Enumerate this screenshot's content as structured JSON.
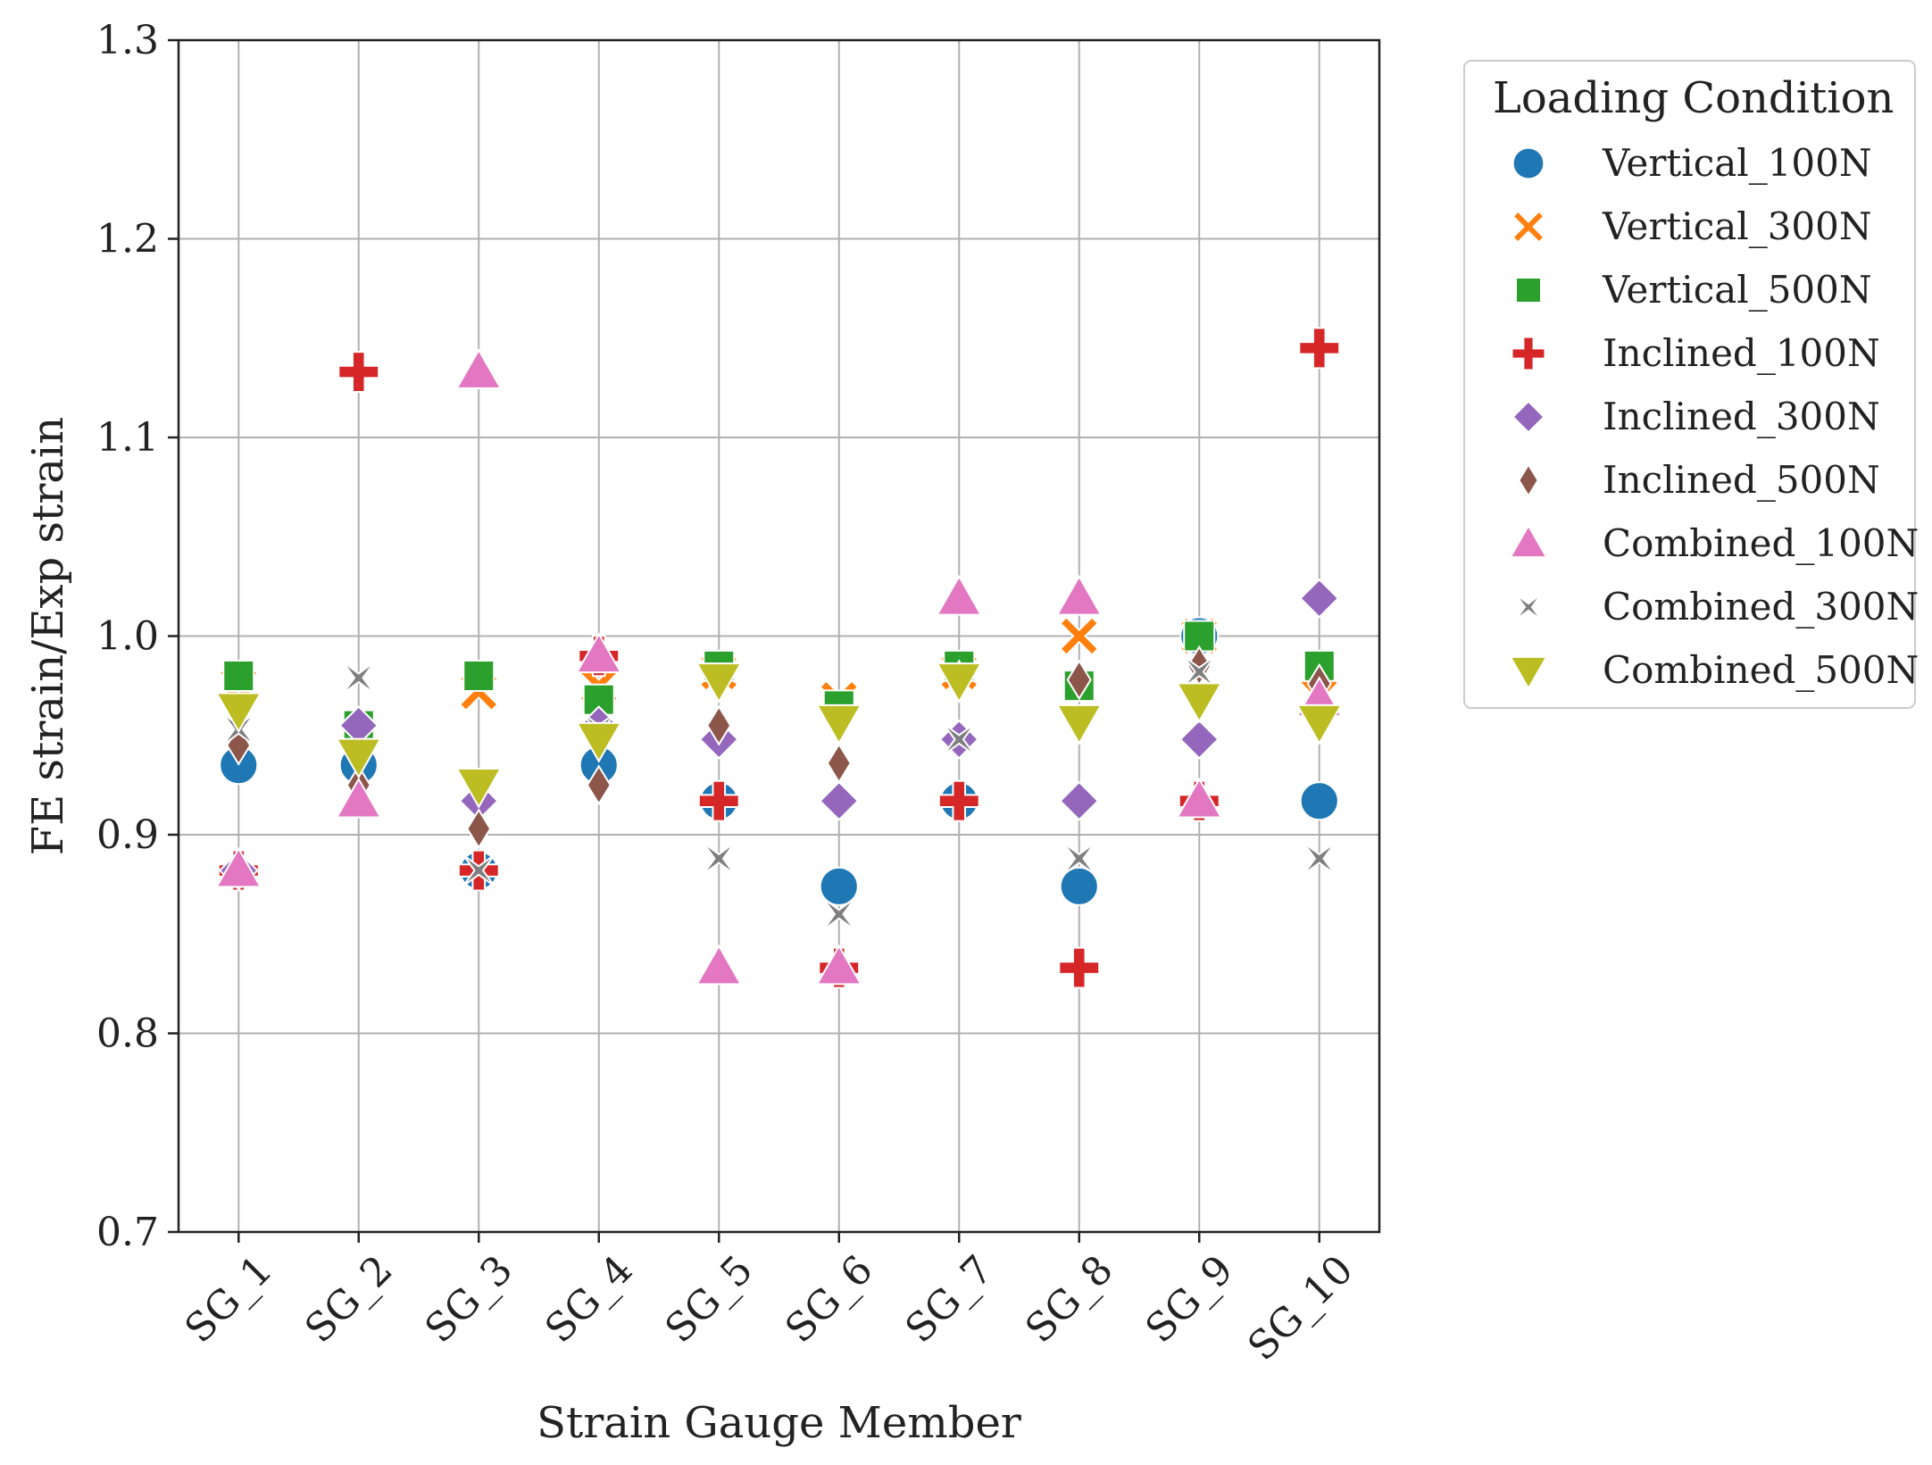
{
  "chart_data": {
    "type": "scatter",
    "title": "",
    "xlabel": "Strain Gauge Member",
    "ylabel": "FE strain/Exp strain",
    "categories": [
      "SG_1",
      "SG_2",
      "SG_3",
      "SG_4",
      "SG_5",
      "SG_6",
      "SG_7",
      "SG_8",
      "SG_9",
      "SG_10"
    ],
    "ylim": [
      0.7,
      1.3
    ],
    "yticks": [
      0.7,
      0.8,
      0.9,
      1.0,
      1.1,
      1.2,
      1.3
    ],
    "ytick_labels": [
      "0.7",
      "0.8",
      "0.9",
      "1.0",
      "1.1",
      "1.2",
      "1.3"
    ],
    "grid": true,
    "legend": {
      "title": "Loading Condition",
      "placement": "outside-right"
    },
    "series": [
      {
        "name": "Vertical_100N",
        "marker": "circle",
        "color": "#1f77b4",
        "values": [
          0.935,
          0.935,
          0.882,
          0.935,
          0.917,
          0.874,
          0.917,
          0.874,
          1.0,
          0.917
        ]
      },
      {
        "name": "Vertical_300N",
        "marker": "x",
        "color": "#ff7f0e",
        "values": [
          0.975,
          0.95,
          0.972,
          0.975,
          0.982,
          0.968,
          0.982,
          1.0,
          1.0,
          0.97
        ]
      },
      {
        "name": "Vertical_500N",
        "marker": "square",
        "color": "#2ca02c",
        "values": [
          0.98,
          0.955,
          0.98,
          0.968,
          0.985,
          0.965,
          0.985,
          0.975,
          1.0,
          0.985
        ]
      },
      {
        "name": "Inclined_100N",
        "marker": "plus",
        "color": "#d62728",
        "values": [
          0.882,
          1.133,
          0.882,
          0.99,
          0.917,
          0.833,
          0.917,
          0.833,
          0.917,
          1.145
        ]
      },
      {
        "name": "Inclined_300N",
        "marker": "diamond",
        "color": "#9467bd",
        "values": [
          0.882,
          0.955,
          0.917,
          0.955,
          0.948,
          0.917,
          0.948,
          0.917,
          0.948,
          1.019
        ]
      },
      {
        "name": "Inclined_500N",
        "marker": "thin-diamond",
        "color": "#8c564b",
        "values": [
          0.945,
          0.925,
          0.903,
          0.925,
          0.955,
          0.936,
          0.978,
          0.978,
          0.985,
          0.976
        ]
      },
      {
        "name": "Combined_100N",
        "marker": "triangle-up",
        "color": "#e377c2",
        "values": [
          0.882,
          0.917,
          1.133,
          0.99,
          0.833,
          0.833,
          1.019,
          1.019,
          0.917,
          0.968
        ]
      },
      {
        "name": "Combined_300N",
        "marker": "star",
        "color": "#7f7f7f",
        "values": [
          0.953,
          0.979,
          0.882,
          0.953,
          0.888,
          0.86,
          0.948,
          0.888,
          0.982,
          0.888
        ]
      },
      {
        "name": "Combined_500N",
        "marker": "triangle-down",
        "color": "#bcbd22",
        "values": [
          0.963,
          0.94,
          0.925,
          0.948,
          0.978,
          0.957,
          0.978,
          0.957,
          0.968,
          0.957
        ]
      }
    ]
  }
}
